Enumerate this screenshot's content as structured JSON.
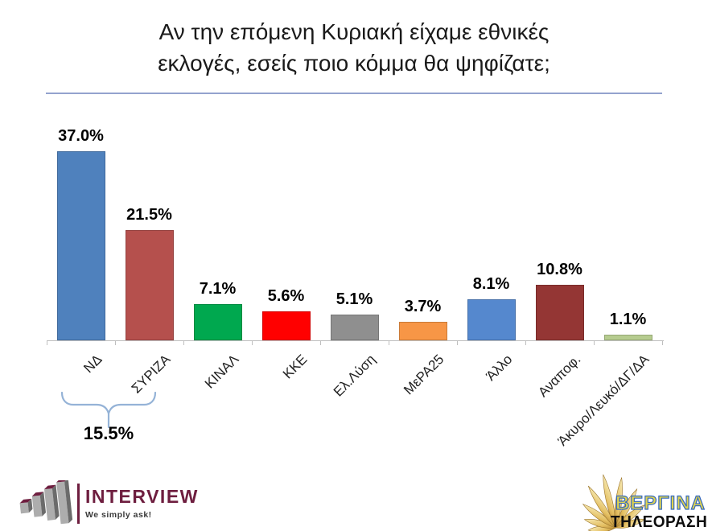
{
  "title": {
    "line1": "Αν την επόμενη Κυριακή είχαμε εθνικές",
    "line2": "εκλογές, εσείς ποιο κόμμα θα ψηφίζατε;"
  },
  "chart_data": {
    "type": "bar",
    "categories": [
      "ΝΔ",
      "ΣΥΡΙΖΑ",
      "ΚΙΝΑΛ",
      "ΚΚΕ",
      "Ελ.Λύση",
      "ΜεΡΑ25",
      "Άλλο",
      "Αναποφ.",
      "Άκυρο/Λευκό/ΔΓ/ΔΑ"
    ],
    "values": [
      37.0,
      21.5,
      7.1,
      5.6,
      5.1,
      3.7,
      8.1,
      10.8,
      1.1
    ],
    "value_labels": [
      "37.0%",
      "21.5%",
      "7.1%",
      "5.6%",
      "5.1%",
      "3.7%",
      "8.1%",
      "10.8%",
      "1.1%"
    ],
    "bar_colors": [
      "#4F81BD",
      "#B5504D",
      "#00A84F",
      "#FF0000",
      "#8F8F8F",
      "#F79646",
      "#5588CE",
      "#943634",
      "#B6CC8F"
    ],
    "ylim": [
      0,
      40
    ],
    "grid": false,
    "legend": false,
    "annotation": {
      "text": "15.5%",
      "spans_categories": [
        "ΝΔ",
        "ΣΥΡΙΖΑ"
      ]
    }
  },
  "footer": {
    "interview": {
      "brand": "INTERVIEW",
      "tagline": "We simply ask!"
    },
    "vergina": {
      "brand": "ΒΕΡΓΙΝΑ",
      "subtitle": "ΤΗΛΕΟΡΑΣΗ"
    }
  },
  "icons": {
    "interview_icon": "bar-chart-3d-icon",
    "vergina_icon": "sun-rays-icon"
  },
  "colors": {
    "title_rule": "#94A2CE",
    "axis": "#BFBFBF",
    "brace": "#95B3D7",
    "interview_maroon": "#6E1E3F",
    "interview_bar_front": "#ADADAD",
    "interview_bar_side": "#6B6B6B",
    "vergina_gold_fill": "#E0D44E",
    "vergina_outline": "#3468BE"
  }
}
